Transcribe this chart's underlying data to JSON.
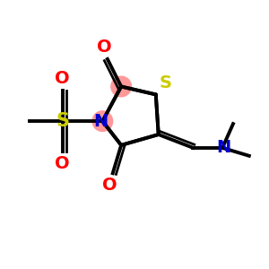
{
  "bg_color": "#ffffff",
  "bond_color": "#000000",
  "S_ring_color": "#cccc00",
  "N_color": "#0000cc",
  "O_color": "#ff0000",
  "S_sulfonyl_color": "#cccc00",
  "ring_highlight_color": "#ff9999",
  "figsize": [
    3.0,
    3.0
  ],
  "dpi": 100,
  "xlim": [
    0,
    10
  ],
  "ylim": [
    0,
    10
  ]
}
